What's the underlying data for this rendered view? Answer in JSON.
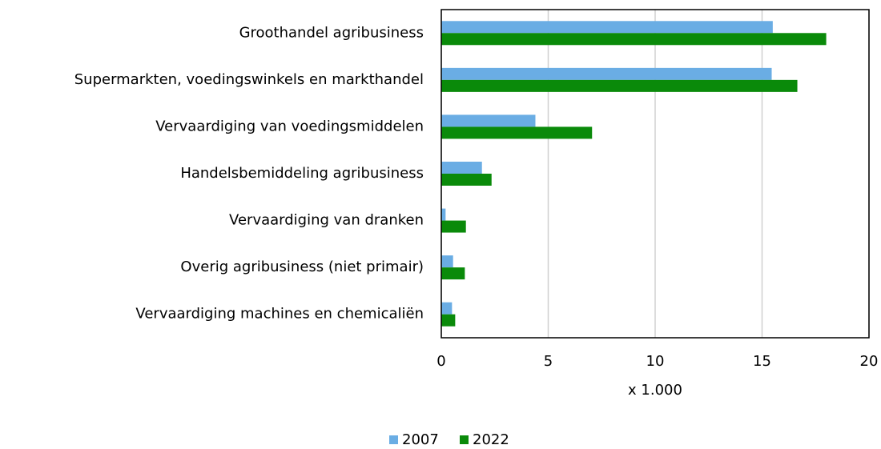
{
  "chart_data": {
    "type": "hbar",
    "categories": [
      "Groothandel agribusiness",
      "Supermarkten, voedingswinkels en markthandel",
      "Vervaardiging van voedingsmiddelen",
      "Handelsbemiddeling agribusiness",
      "Vervaardiging van dranken",
      "Overig agribusiness (niet primair)",
      "Vervaardiging machines en chemicaliën"
    ],
    "series": [
      {
        "name": "2007",
        "color": "#6aade4",
        "values": [
          15.5,
          15.45,
          4.4,
          1.9,
          0.2,
          0.55,
          0.5
        ]
      },
      {
        "name": "2022",
        "color": "#0a8a0a",
        "values": [
          18.0,
          16.65,
          7.05,
          2.35,
          1.15,
          1.1,
          0.65
        ]
      }
    ],
    "xlabel": "x 1.000",
    "xlim": [
      0,
      20
    ],
    "xticks": [
      0,
      5,
      10,
      15,
      20
    ],
    "grid": true,
    "legend": "bottom"
  }
}
